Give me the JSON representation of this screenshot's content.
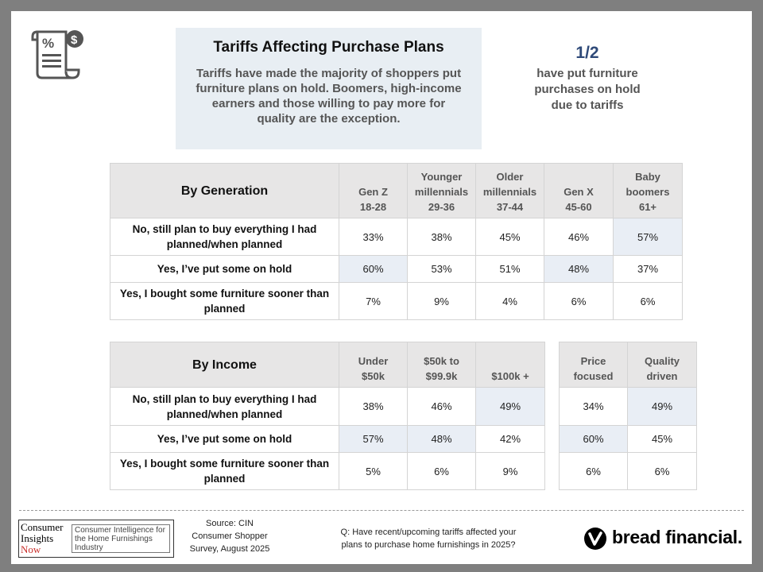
{
  "title": "Tariffs Affecting Purchase Plans",
  "subtitle": "Tariffs have made the majority of shoppers put furniture plans on hold. Boomers, high-income earners and those willing to pay more for quality are the exception.",
  "stat": {
    "value": "1/2",
    "caption_lines": [
      "have put furniture",
      "purchases on hold",
      "due to tariffs"
    ]
  },
  "generation_table": {
    "heading": "By Generation",
    "columns": [
      {
        "line1": "Gen Z",
        "line2": "18-28"
      },
      {
        "line1": "Younger millennials",
        "line2": "29-36"
      },
      {
        "line1": "Older millennials",
        "line2": "37-44"
      },
      {
        "line1": "Gen X",
        "line2": "45-60"
      },
      {
        "line1": "Baby boomers",
        "line2": "61+"
      }
    ],
    "rows": [
      {
        "label": "No, still plan to buy everything I had planned/when planned",
        "values": [
          "33%",
          "38%",
          "45%",
          "46%",
          "57%"
        ]
      },
      {
        "label": "Yes, I’ve put some on hold",
        "values": [
          "60%",
          "53%",
          "51%",
          "48%",
          "37%"
        ]
      },
      {
        "label": "Yes, I bought some furniture sooner than planned",
        "values": [
          "7%",
          "9%",
          "4%",
          "6%",
          "6%"
        ]
      }
    ]
  },
  "income_table": {
    "heading": "By Income",
    "columns": [
      {
        "line1": "Under",
        "line2": "$50k"
      },
      {
        "line1": "$50k to",
        "line2": "$99.9k"
      },
      {
        "line1": "$100k +",
        "line2": ""
      }
    ],
    "rows": [
      {
        "label": "No, still plan to buy everything I had planned/when planned",
        "values": [
          "38%",
          "46%",
          "49%"
        ]
      },
      {
        "label": "Yes, I’ve put some on hold",
        "values": [
          "57%",
          "48%",
          "42%"
        ]
      },
      {
        "label": "Yes, I bought some furniture sooner than planned",
        "values": [
          "5%",
          "6%",
          "9%"
        ]
      }
    ]
  },
  "quality_table": {
    "columns": [
      {
        "line1": "Price",
        "line2": "focused"
      },
      {
        "line1": "Quality",
        "line2": "driven"
      }
    ],
    "rows": [
      {
        "values": [
          "34%",
          "49%"
        ]
      },
      {
        "values": [
          "60%",
          "45%"
        ]
      },
      {
        "values": [
          "6%",
          "6%"
        ]
      }
    ]
  },
  "footer": {
    "logo_text": {
      "line1": "Consumer",
      "line2": "Insights",
      "line3": "Now"
    },
    "logo_tagline": "Consumer Intelligence for the Home Furnishings Industry",
    "source_lines": [
      "Source: CIN",
      "Consumer Shopper",
      "Survey, August 2025"
    ],
    "question_lines": [
      "Q: Have recent/upcoming tariffs affected your",
      "plans to purchase home furnishings in 2025?"
    ],
    "brand": "bread financial."
  },
  "icons": [
    "tax-document-icon",
    "bread-logo-icon"
  ],
  "colors": {
    "highlight": "#e9eef5",
    "header_bg": "#e7e6e6",
    "accent": "#2f4a79"
  }
}
